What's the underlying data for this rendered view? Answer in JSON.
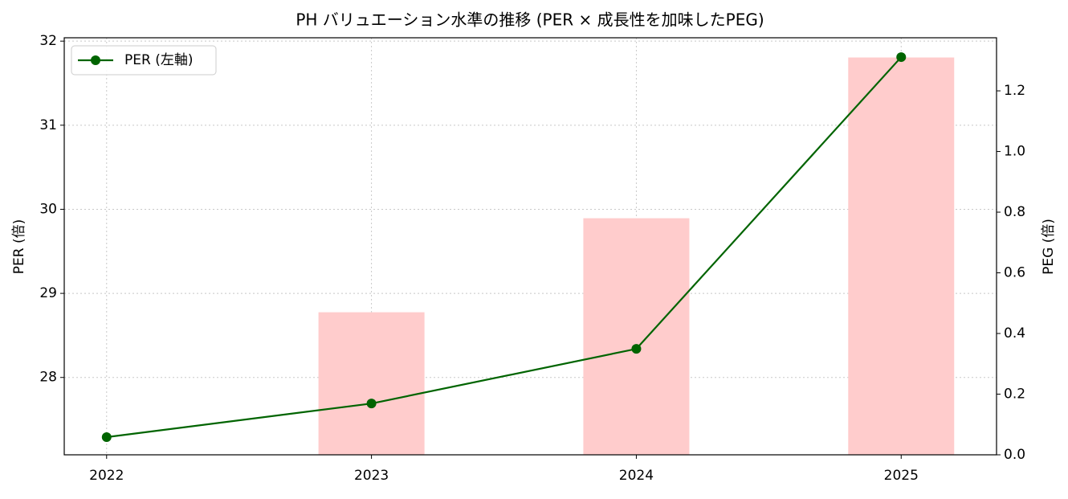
{
  "chart_data": {
    "type": "line",
    "title": "PH バリュエーション水準の推移 (PER × 成長性を加味したPEG)",
    "ylabel": "PER (倍)",
    "y2label": "PEG (倍)",
    "x": [
      2022,
      2023,
      2024,
      2025
    ],
    "xlim": [
      2021.84,
      2025.36
    ],
    "xticks": [
      2022,
      2023,
      2024,
      2025
    ],
    "ylim": [
      27.08,
      32.04
    ],
    "yticks": [
      28,
      29,
      30,
      31,
      32
    ],
    "y2lim": [
      0,
      1.375
    ],
    "y2ticks": [
      {
        "value": 0,
        "label": "0.0"
      },
      0.2,
      0.4,
      0.6,
      0.8,
      {
        "value": 1,
        "label": "1.0"
      },
      1.2
    ],
    "grid": true,
    "legend": "upper left",
    "series": [
      {
        "name": "PER (左軸)",
        "type": "line",
        "color": "#006400",
        "values": [
          27.29,
          27.69,
          28.34,
          31.81
        ]
      },
      {
        "type": "bar",
        "axis": "y2",
        "color": "#ffcccc",
        "values": [
          null,
          0.47,
          0.78,
          1.31
        ]
      }
    ]
  }
}
